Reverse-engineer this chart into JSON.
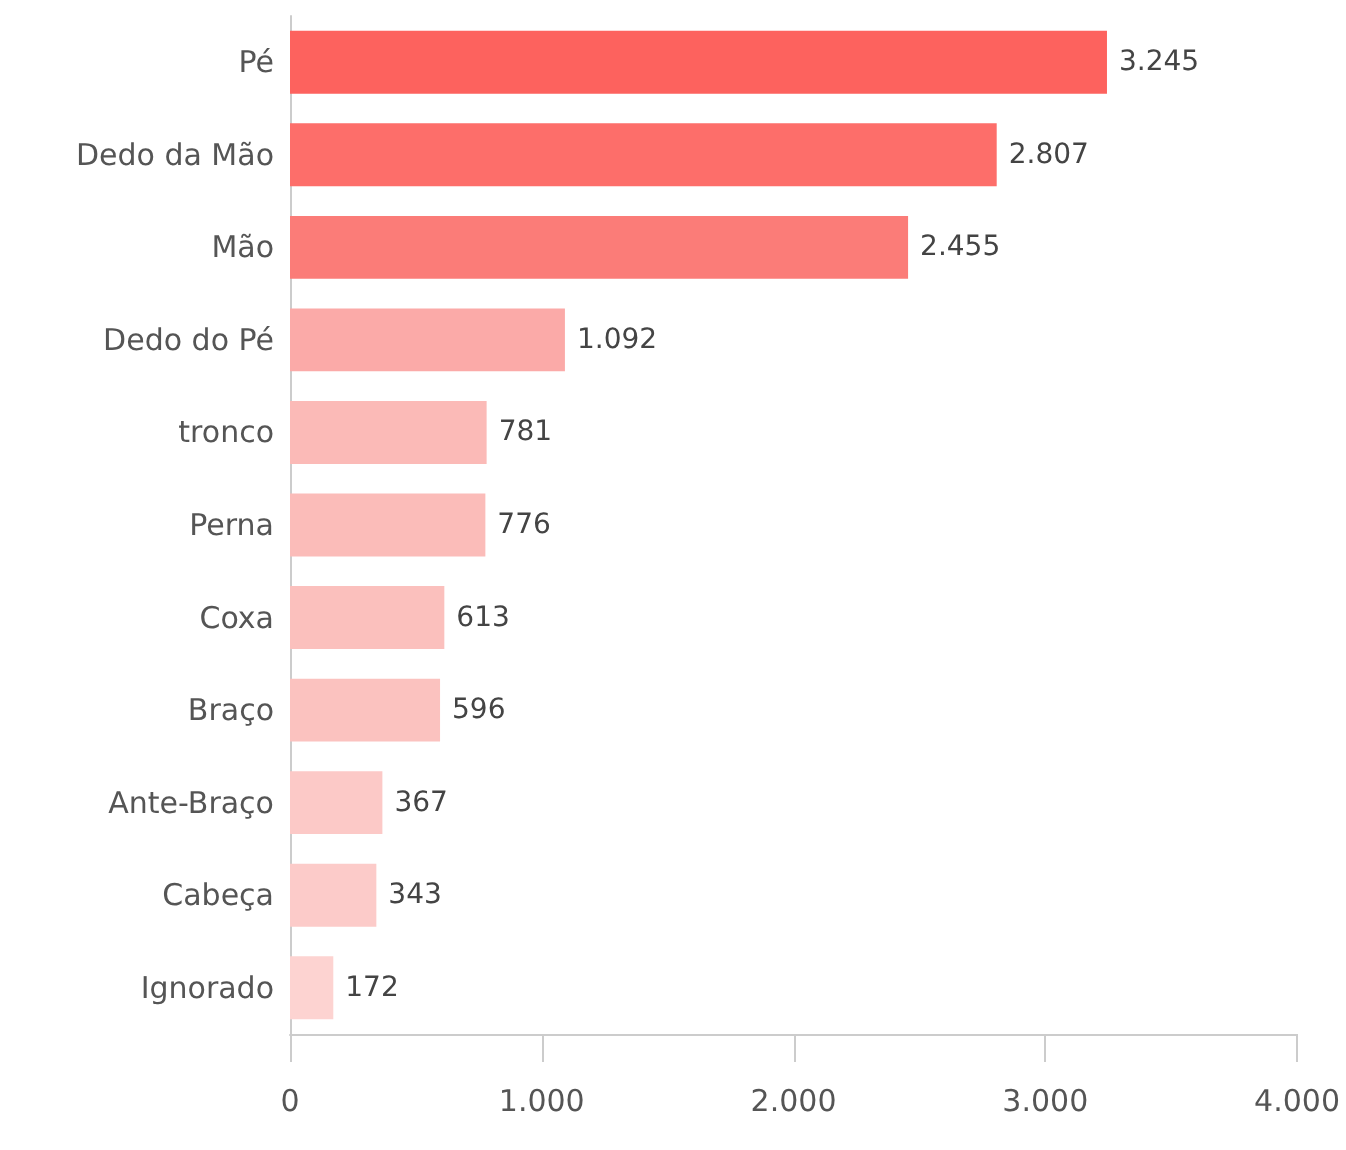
{
  "chart_data": {
    "type": "bar",
    "orientation": "horizontal",
    "categories": [
      "Pé",
      "Dedo da Mão",
      "Mão",
      "Dedo do Pé",
      "tronco",
      "Perna",
      "Coxa",
      "Braço",
      "Ante-Braço",
      "Cabeça",
      "Ignorado"
    ],
    "values": [
      3245,
      2807,
      2455,
      1092,
      781,
      776,
      613,
      596,
      367,
      343,
      172
    ],
    "value_labels": [
      "3.245",
      "2.807",
      "2.455",
      "1.092",
      "781",
      "776",
      "613",
      "596",
      "367",
      "343",
      "172"
    ],
    "colors": [
      "#fd625e",
      "#fd6e6a",
      "#fb7c78",
      "#fbaaa8",
      "#fbbab7",
      "#fbbcb9",
      "#fbc0bd",
      "#fbc2bf",
      "#fcc9c7",
      "#fccbc9",
      "#fdd3d1"
    ],
    "xlim": [
      0,
      4000
    ],
    "xticks": [
      {
        "value": 0,
        "label": "0"
      },
      {
        "value": 1000,
        "label": "1.000"
      },
      {
        "value": 2000,
        "label": "2.000"
      },
      {
        "value": 3000,
        "label": "3.000"
      },
      {
        "value": 4000,
        "label": "4.000"
      }
    ],
    "grid": false
  }
}
